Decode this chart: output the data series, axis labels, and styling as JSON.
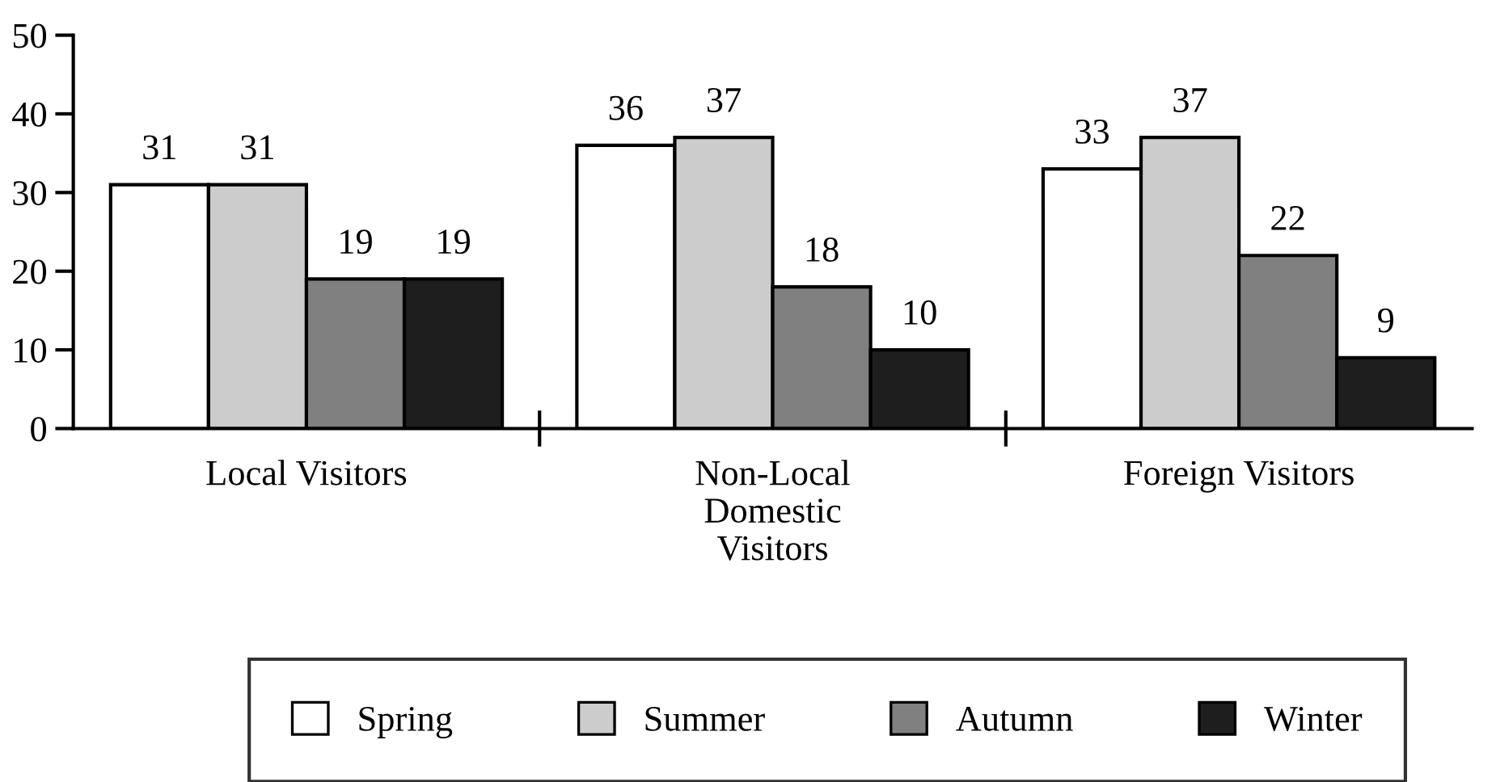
{
  "chart_data": {
    "type": "bar",
    "categories": [
      "Local Visitors",
      "Non-Local Domestic Visitors",
      "Foreign Visitors"
    ],
    "series": [
      {
        "name": "Spring",
        "color": "#ffffff",
        "values": [
          31,
          36,
          33
        ]
      },
      {
        "name": "Summer",
        "color": "#cccccc",
        "values": [
          31,
          37,
          37
        ]
      },
      {
        "name": "Autumn",
        "color": "#808080",
        "values": [
          19,
          18,
          22
        ]
      },
      {
        "name": "Winter",
        "color": "#1e1e1e",
        "values": [
          19,
          10,
          9
        ]
      }
    ],
    "ylim": [
      0,
      50
    ],
    "yticks": [
      0,
      10,
      20,
      30,
      40,
      50
    ],
    "data_labels": true,
    "grid": false,
    "legend": "bottom"
  }
}
